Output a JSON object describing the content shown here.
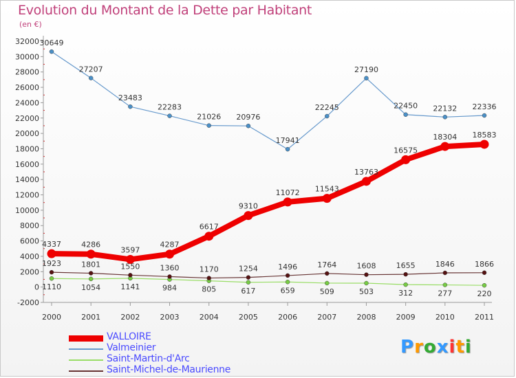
{
  "title": "Evolution du Montant de la Dette par Habitant",
  "subtitle": "(en €)",
  "chart_data": {
    "type": "line",
    "title": "Evolution du Montant de la Dette par Habitant",
    "subtitle": "(en €)",
    "xlabel": "",
    "ylabel": "",
    "x": [
      "2000",
      "2001",
      "2002",
      "2003",
      "2004",
      "2005",
      "2006",
      "2007",
      "2008",
      "2009",
      "2010",
      "2011"
    ],
    "ylim": [
      -2000,
      32000
    ],
    "yticks": [
      -2000,
      0,
      2000,
      4000,
      6000,
      8000,
      10000,
      12000,
      14000,
      16000,
      18000,
      20000,
      22000,
      24000,
      26000,
      28000,
      30000,
      32000
    ],
    "grid": false,
    "legend_position": "bottom-left",
    "series": [
      {
        "name": "VALLOIRE",
        "color": "#ee0000",
        "values": [
          4337,
          4286,
          3597,
          4287,
          6617,
          9310,
          11072,
          11543,
          13763,
          16575,
          18304,
          18583
        ]
      },
      {
        "name": "Valmeinier",
        "color": "#6699cc",
        "values": [
          30649,
          27207,
          23483,
          22283,
          21026,
          20976,
          17941,
          22245,
          27190,
          22450,
          22132,
          22336
        ]
      },
      {
        "name": "Saint-Martin-d'Arc",
        "color": "#99dd66",
        "values": [
          1110,
          1054,
          1141,
          984,
          805,
          617,
          659,
          509,
          503,
          312,
          277,
          220
        ]
      },
      {
        "name": "Saint-Michel-de-Maurienne",
        "color": "#663333",
        "values": [
          1923,
          1801,
          1550,
          1360,
          1170,
          1254,
          1496,
          1764,
          1608,
          1655,
          1846,
          1866
        ]
      }
    ]
  },
  "logo": {
    "letters": [
      "P",
      "r",
      "o",
      "x",
      "i",
      "t",
      "i"
    ],
    "colors": [
      "#3399ff",
      "#ff9900",
      "#33aa33",
      "#3399ff",
      "#ff3333",
      "#ff9900",
      "#33aa33"
    ]
  }
}
